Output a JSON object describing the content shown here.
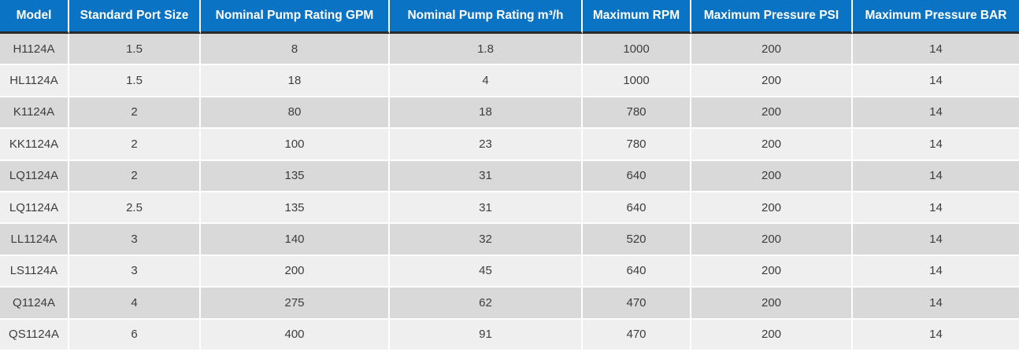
{
  "table": {
    "title": "pump-specifications",
    "columns": [
      {
        "label": "Model"
      },
      {
        "label": "Standard Port Size"
      },
      {
        "label": "Nominal Pump Rating GPM"
      },
      {
        "label": "Nominal Pump Rating m³/h"
      },
      {
        "label": "Maximum RPM"
      },
      {
        "label": "Maximum Pressure PSI"
      },
      {
        "label": "Maximum Pressure BAR"
      }
    ],
    "rows": [
      [
        "H1124A",
        "1.5",
        "8",
        "1.8",
        "1000",
        "200",
        "14"
      ],
      [
        "HL1124A",
        "1.5",
        "18",
        "4",
        "1000",
        "200",
        "14"
      ],
      [
        "K1124A",
        "2",
        "80",
        "18",
        "780",
        "200",
        "14"
      ],
      [
        "KK1124A",
        "2",
        "100",
        "23",
        "780",
        "200",
        "14"
      ],
      [
        "LQ1124A",
        "2",
        "135",
        "31",
        "640",
        "200",
        "14"
      ],
      [
        "LQ1124A",
        "2.5",
        "135",
        "31",
        "640",
        "200",
        "14"
      ],
      [
        "LL1124A",
        "3",
        "140",
        "32",
        "520",
        "200",
        "14"
      ],
      [
        "LS1124A",
        "3",
        "200",
        "45",
        "640",
        "200",
        "14"
      ],
      [
        "Q1124A",
        "4",
        "275",
        "62",
        "470",
        "200",
        "14"
      ],
      [
        "QS1124A",
        "6",
        "400",
        "91",
        "470",
        "200",
        "14"
      ]
    ]
  },
  "colors": {
    "header_bg": "#0b73c4",
    "header_text": "#ffffff",
    "header_underline": "#2b2b2b",
    "row_odd_bg": "#d9d9d9",
    "row_even_bg": "#efefef",
    "body_text": "#3d3d3d",
    "separator": "#ffffff"
  }
}
